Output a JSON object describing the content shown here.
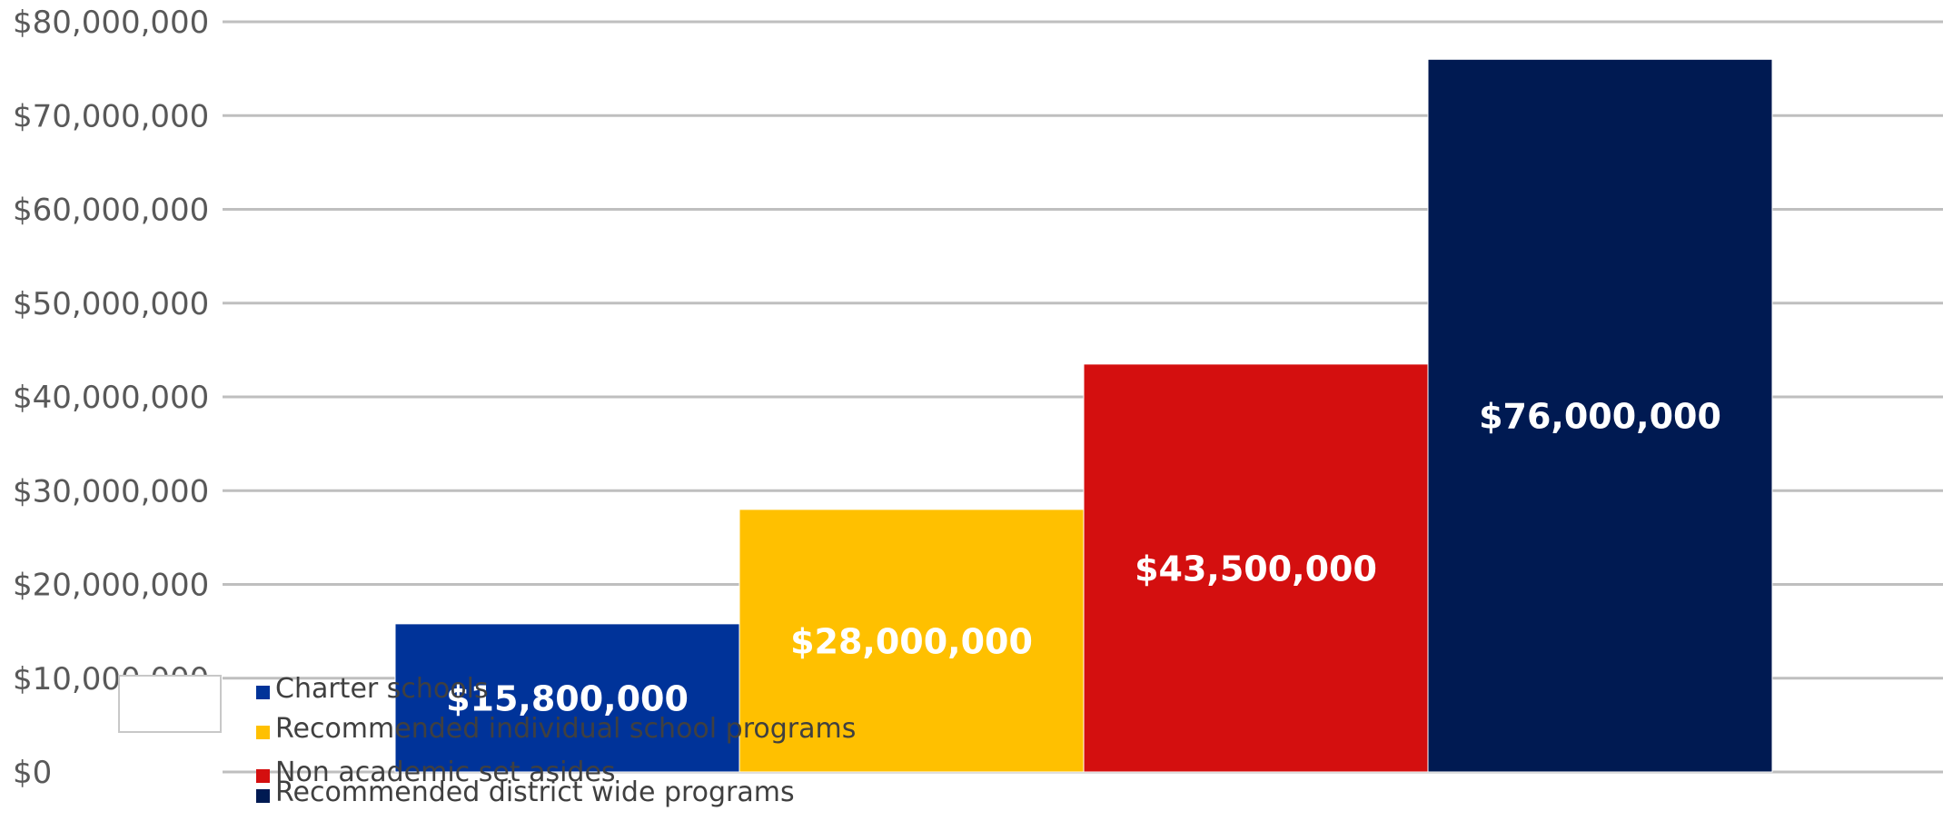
{
  "chart_data": {
    "type": "bar",
    "title": "",
    "xlabel": "",
    "ylabel": "",
    "ylim": [
      0,
      80000000
    ],
    "grid": true,
    "legend_position": "bottom-left",
    "y_ticks": [
      "$0",
      "$10,000,000",
      "$20,000,000",
      "$30,000,000",
      "$40,000,000",
      "$50,000,000",
      "$60,000,000",
      "$70,000,000",
      "$80,000,000"
    ],
    "series": [
      {
        "name": "Charter schools",
        "value": 15800000,
        "label": "$15,800,000",
        "color": "#003399"
      },
      {
        "name": "Recommended individual school programs",
        "value": 28000000,
        "label": "$28,000,000",
        "color": "#FFC000"
      },
      {
        "name": "Non academic set asides",
        "value": 43500000,
        "label": "$43,500,000",
        "color": "#D40F0F"
      },
      {
        "name": "Recommended district wide programs",
        "value": 76000000,
        "label": "$76,000,000",
        "color": "#001A52"
      }
    ]
  }
}
